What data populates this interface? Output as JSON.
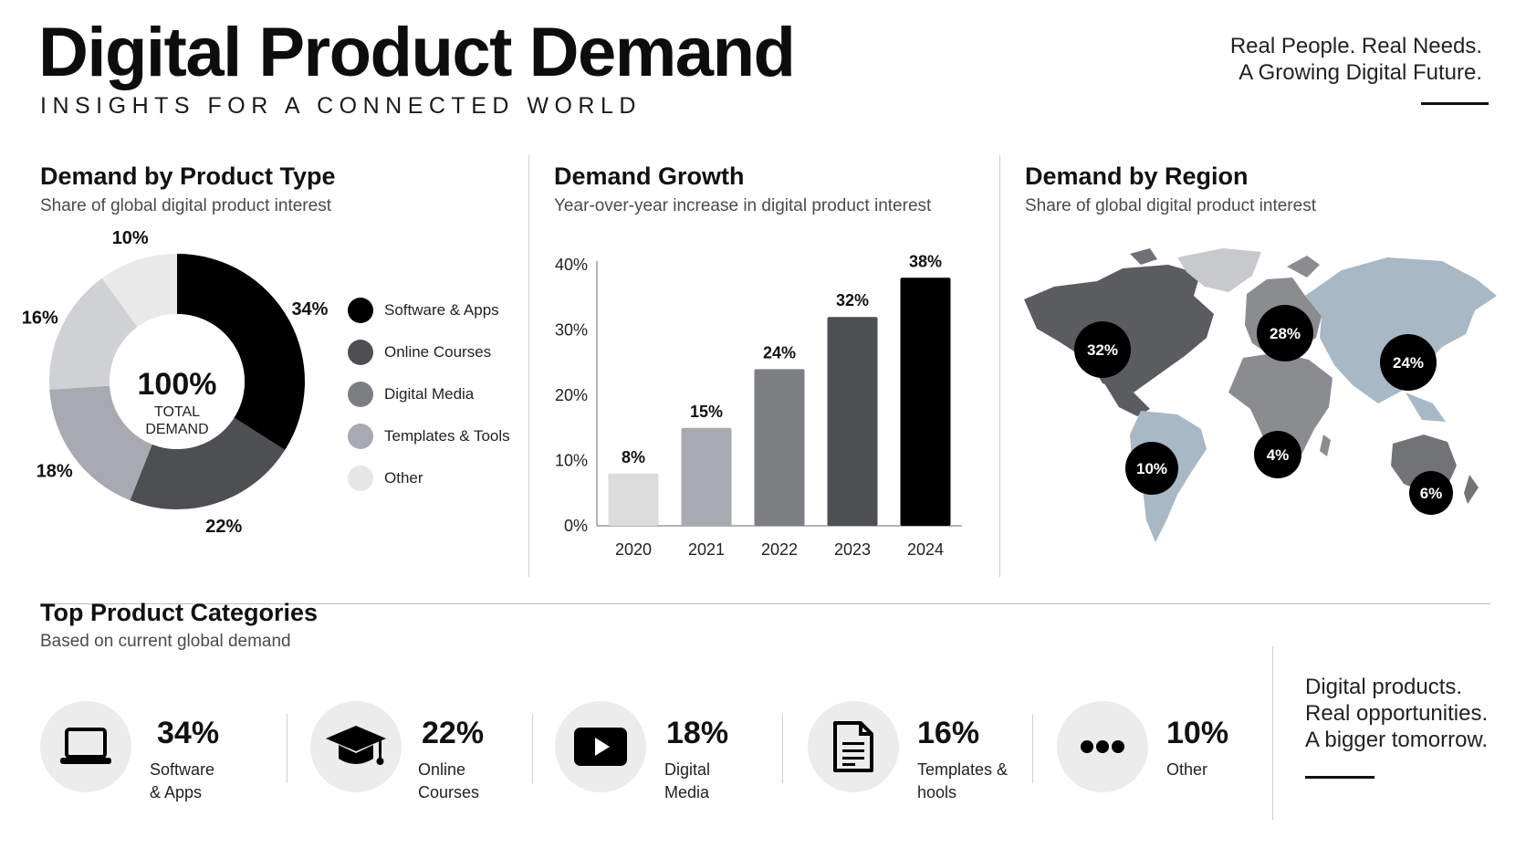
{
  "header": {
    "title": "Digital Product Demand",
    "subtitle": "INSIGHTS FOR A CONNECTED WORLD",
    "tagline": [
      "Real People. Real Needs.",
      "A Growing Digital Future."
    ]
  },
  "colors": {
    "black": "#000000",
    "dark_gray": "#4d4f52",
    "mid_gray": "#7c7e82",
    "light_gray": "#a7aab0",
    "pale_gray": "#dcdcdc",
    "map_blue_gray": "#a9b8c5"
  },
  "product_type": {
    "title": "Demand by Product Type",
    "subtitle": "Share of global digital product interest",
    "center_value": "100%",
    "center_label": [
      "TOTAL",
      "DEMAND"
    ]
  },
  "growth": {
    "title": "Demand Growth",
    "subtitle": "Year-over-year increase in digital product interest"
  },
  "region": {
    "title": "Demand by Region",
    "subtitle": "Share of global digital product interest"
  },
  "categories": {
    "title": "Top Product Categories",
    "subtitle": "Based on current global demand",
    "items": [
      {
        "pct": "34%",
        "label": "Software & Apps",
        "icon": "laptop-icon"
      },
      {
        "pct": "22%",
        "label": "Online Courses",
        "icon": "graduation-cap-icon"
      },
      {
        "pct": "18%",
        "label": "Digital Media",
        "icon": "play-icon"
      },
      {
        "pct": "16%",
        "label": "Templates & hools",
        "icon": "document-icon"
      },
      {
        "pct": "10%",
        "label": "Other",
        "icon": "more-dots-icon"
      }
    ]
  },
  "closing": {
    "lines": [
      "Digital products.",
      "Real opportunities.",
      "A bigger tomorrow."
    ]
  },
  "chart_data": [
    {
      "type": "pie",
      "title": "Demand by Product Type",
      "subtitle": "Share of global digital product interest",
      "categories": [
        "Software & Apps",
        "Online Courses",
        "Digital Media",
        "Templates & Tools",
        "Other"
      ],
      "values": [
        34,
        22,
        18,
        16,
        10
      ],
      "labels": [
        "34%",
        "22%",
        "18%",
        "16%",
        "10%"
      ],
      "colors": [
        "#000000",
        "#4d4f52",
        "#a7aab0",
        "#d0d1d4",
        "#e9e9e9"
      ],
      "legend_colors": [
        "#000000",
        "#4d4f52",
        "#7c7e82",
        "#a7aab0",
        "#e6e6e6"
      ],
      "legend": "right"
    },
    {
      "type": "bar",
      "title": "Demand Growth",
      "subtitle": "Year-over-year increase in digital product interest",
      "categories": [
        "2020",
        "2021",
        "2022",
        "2023",
        "2024"
      ],
      "values": [
        8,
        15,
        24,
        32,
        38
      ],
      "labels": [
        "8%",
        "15%",
        "24%",
        "32%",
        "38%"
      ],
      "colors": [
        "#dcdcdc",
        "#a7aab0",
        "#7c7e82",
        "#4d4f52",
        "#000000"
      ],
      "yticks": [
        "0%",
        "10%",
        "20%",
        "30%",
        "40%"
      ],
      "ylim": [
        0,
        40
      ],
      "grid": false
    },
    {
      "type": "other",
      "title": "Demand by Region",
      "subtitle": "Share of global digital product interest",
      "regions": [
        "North America",
        "Europe",
        "Asia",
        "South America",
        "Africa",
        "Oceania"
      ],
      "values": [
        32,
        28,
        24,
        10,
        4,
        6
      ],
      "labels": [
        "32%",
        "28%",
        "24%",
        "10%",
        "4%",
        "6%"
      ]
    }
  ]
}
